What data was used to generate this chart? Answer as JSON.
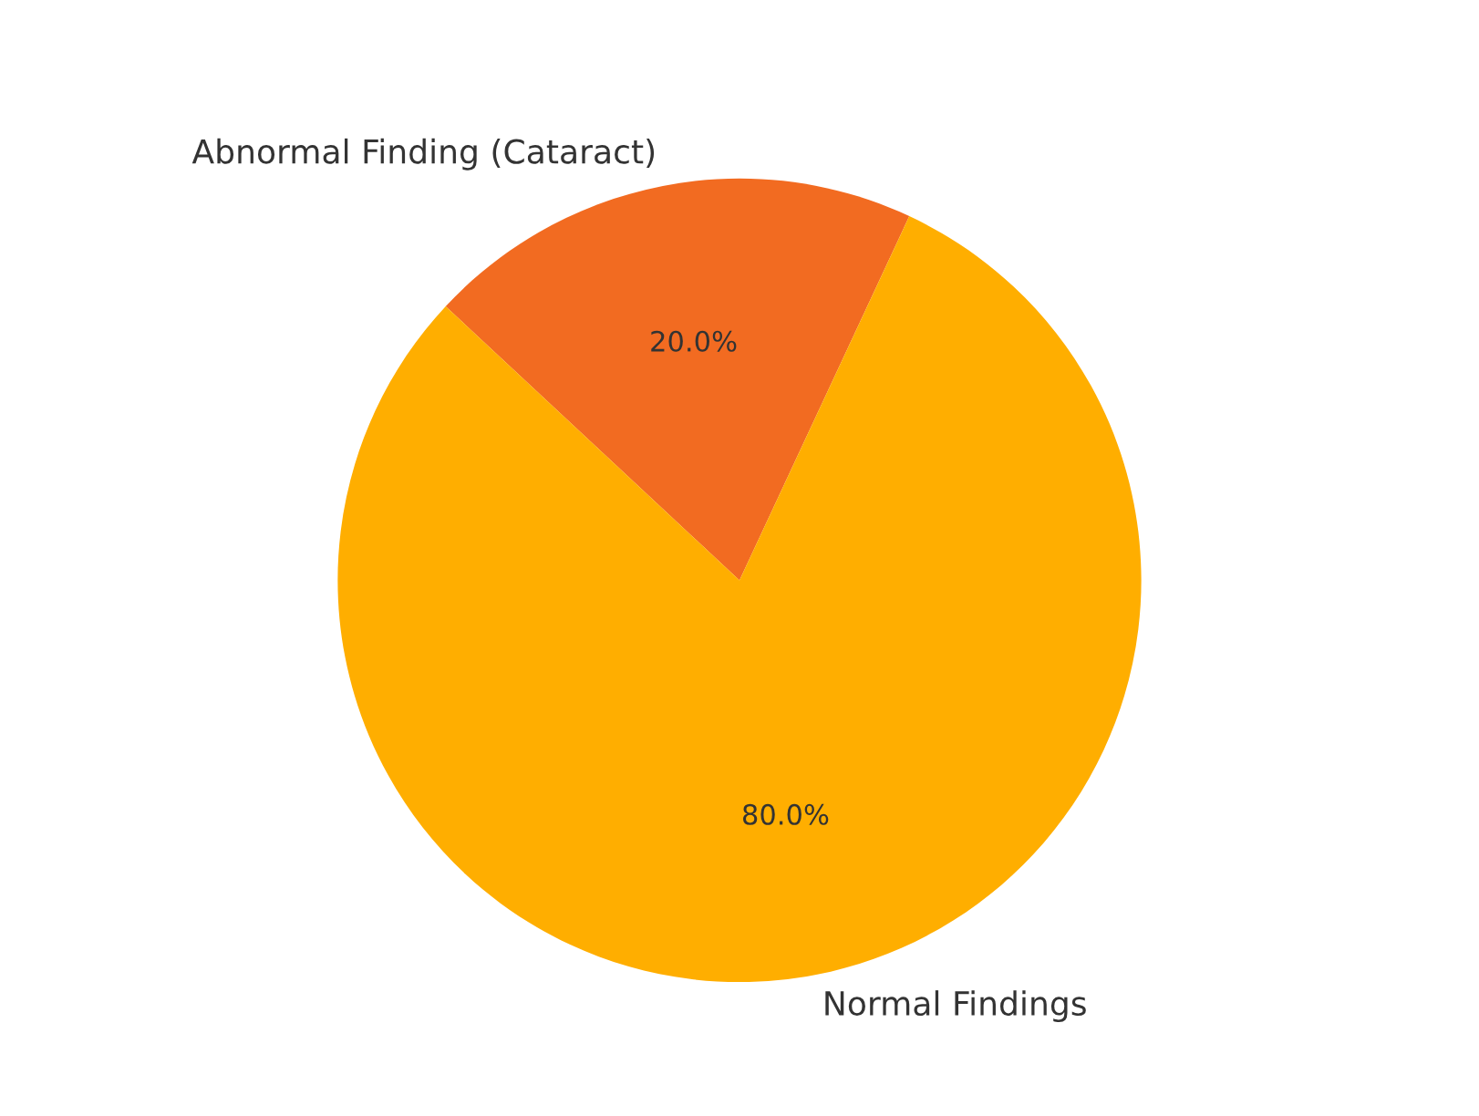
{
  "chart_data": {
    "type": "pie",
    "categories": [
      "Abnormal Finding (Cataract)",
      "Normal Findings"
    ],
    "values": [
      20.0,
      80.0
    ],
    "colors": [
      "#f26b21",
      "#ffae00"
    ],
    "value_labels": [
      "20.0%",
      "80.0%"
    ]
  }
}
